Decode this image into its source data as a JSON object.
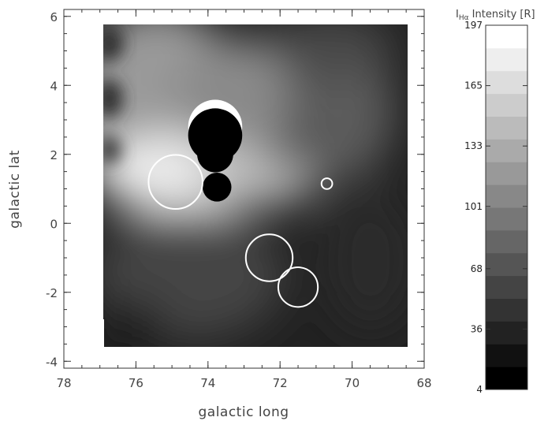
{
  "chart_data": {
    "type": "heatmap",
    "title": "",
    "xlabel": "galactic long",
    "ylabel": "galactic lat",
    "xlim": [
      78,
      68
    ],
    "ylim": [
      -4.2,
      6.2
    ],
    "x_ticks": [
      "78",
      "76",
      "74",
      "72",
      "70",
      "68"
    ],
    "y_ticks": [
      "-4",
      "-2",
      "0",
      "2",
      "4",
      "6"
    ],
    "map_extent": {
      "x": [
        76.9,
        68.5
      ],
      "y": [
        -3.5,
        5.6
      ]
    },
    "colorbar": {
      "title_main": "I",
      "title_sub": "Hα",
      "title_rest": " Intensity [R]",
      "range": [
        4,
        197
      ],
      "ticks": [
        "197",
        "165",
        "133",
        "101",
        "68",
        "36",
        "4"
      ],
      "levels": 16
    },
    "masked_regions": [
      {
        "l": 73.8,
        "b": 2.8,
        "r": 0.75,
        "fill": "white"
      },
      {
        "l": 73.8,
        "b": 2.55,
        "r": 0.75,
        "fill": "black"
      },
      {
        "l": 73.8,
        "b": 2.0,
        "r": 0.5,
        "fill": "black"
      },
      {
        "l": 73.75,
        "b": 1.05,
        "r": 0.4,
        "fill": "black"
      }
    ],
    "outlined_regions": [
      {
        "l": 74.9,
        "b": 1.2,
        "r": 0.75
      },
      {
        "l": 72.3,
        "b": -1.0,
        "r": 0.65
      },
      {
        "l": 71.5,
        "b": -1.85,
        "r": 0.55
      },
      {
        "l": 70.7,
        "b": 1.15,
        "r": 0.15
      }
    ]
  }
}
